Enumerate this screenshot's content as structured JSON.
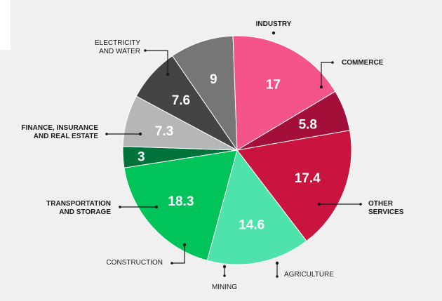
{
  "chart_data": {
    "type": "pie",
    "title": "",
    "start_angle_deg": 80,
    "direction": "clockwise",
    "categories": [
      "INDUSTRY",
      "COMMERCE",
      "OTHER SERVICES",
      "AGRICULTURE",
      "MINING",
      "CONSTRUCTION",
      "TRANSPORTATION AND STORAGE",
      "FINANCE, INSURANCE AND REAL ESTATE",
      "ELECTRICITY AND WATER"
    ],
    "values": [
      17.4,
      14.6,
      18.3,
      3,
      7.3,
      7.6,
      9,
      17,
      5.8
    ],
    "value_labels": [
      "17.4",
      "14.6",
      "18.3",
      "3",
      "7.3",
      "7.6",
      "9",
      "17",
      "5.8"
    ],
    "label_lines": [
      [
        "INDUSTRY"
      ],
      [
        "COMMERCE"
      ],
      [
        "OTHER",
        "SERVICES"
      ],
      [
        "AGRICULTURE"
      ],
      [
        "MINING"
      ],
      [
        "CONSTRUCTION"
      ],
      [
        "TRANSPORTATION",
        "AND STORAGE"
      ],
      [
        "FINANCE, INSURANCE",
        "AND REAL ESTATE"
      ],
      [
        "ELECTRICITY",
        "AND WATER"
      ]
    ],
    "label_bold": [
      true,
      true,
      true,
      false,
      false,
      false,
      true,
      true,
      false
    ],
    "colors": [
      "#c8143f",
      "#4de3aa",
      "#00c35a",
      "#00733a",
      "#b5b6b8",
      "#444345",
      "#767676",
      "#f4548a",
      "#a30f38"
    ]
  }
}
